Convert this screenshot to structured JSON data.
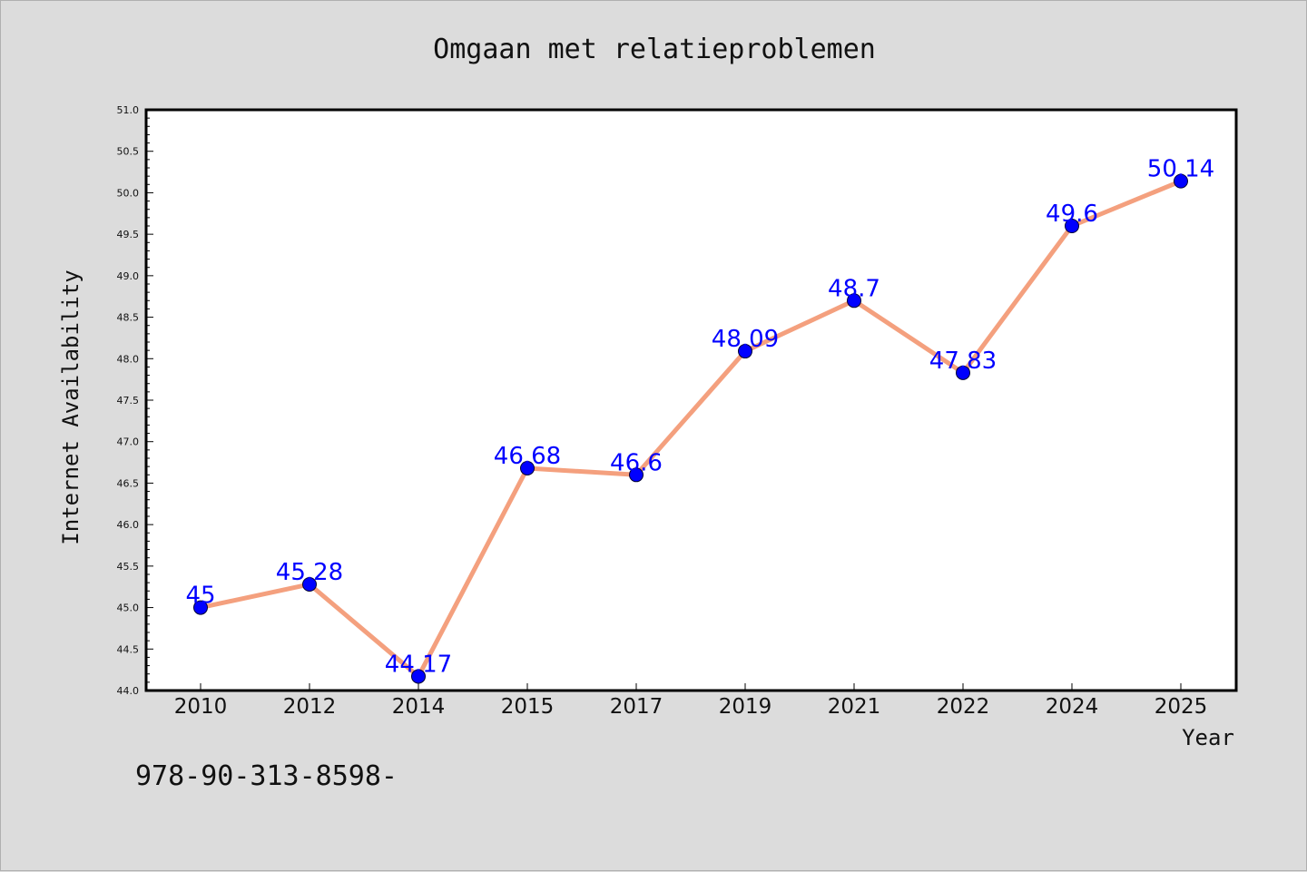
{
  "chart_data": {
    "type": "line",
    "title": "Omgaan met relatieproblemen",
    "xlabel": "Year",
    "ylabel": "Internet Availability",
    "categories": [
      "2010",
      "2012",
      "2014",
      "2015",
      "2017",
      "2019",
      "2021",
      "2022",
      "2024",
      "2025"
    ],
    "series": [
      {
        "values": [
          45,
          45.28,
          44.17,
          46.68,
          46.6,
          48.09,
          48.7,
          47.83,
          49.6,
          50.14
        ],
        "data_labels": [
          "45",
          "45.28",
          "44.17",
          "46.68",
          "46.6",
          "48.09",
          "48.7",
          "47.83",
          "49.6",
          "50.14"
        ]
      }
    ],
    "ylim": [
      44.0,
      51.0
    ],
    "yticks": [
      "44.0",
      "44.5",
      "45.0",
      "45.5",
      "46.0",
      "46.5",
      "47.0",
      "47.5",
      "48.0",
      "48.5",
      "49.0",
      "49.5",
      "50.0",
      "50.5",
      "51.0"
    ],
    "grid": false,
    "colors": {
      "line": "#f4a07e",
      "marker": "#0000ff",
      "label": "#0000ff",
      "background": "#dcdcdc",
      "plot_bg": "#ffffff"
    }
  },
  "footer": {
    "isbn": "978-90-313-8598-"
  }
}
